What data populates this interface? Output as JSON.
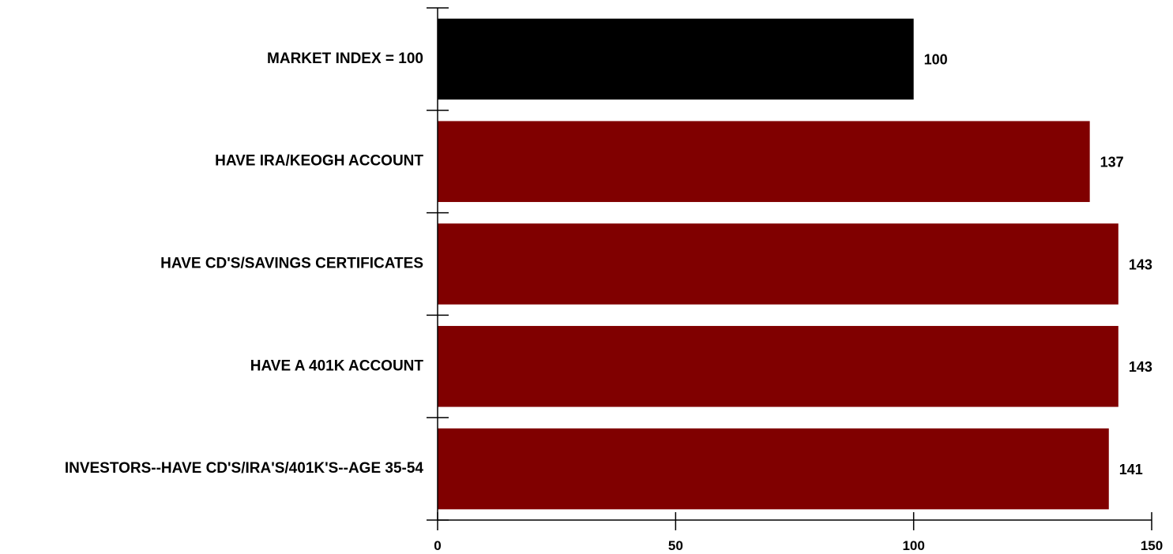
{
  "chart_data": {
    "type": "bar",
    "orientation": "horizontal",
    "categories": [
      "MARKET INDEX = 100",
      "HAVE IRA/KEOGH ACCOUNT",
      "HAVE CD'S/SAVINGS CERTIFICATES",
      "HAVE A 401K ACCOUNT",
      "INVESTORS--HAVE CD'S/IRA'S/401K'S--AGE 35-54"
    ],
    "values": [
      100,
      137,
      143,
      143,
      141
    ],
    "bar_colors": [
      "#000000",
      "#800000",
      "#800000",
      "#800000",
      "#800000"
    ],
    "xlim": [
      0,
      150
    ],
    "xticks": [
      0,
      50,
      100,
      150
    ],
    "title": "",
    "xlabel": "",
    "ylabel": "",
    "grid": false,
    "legend": "none"
  }
}
